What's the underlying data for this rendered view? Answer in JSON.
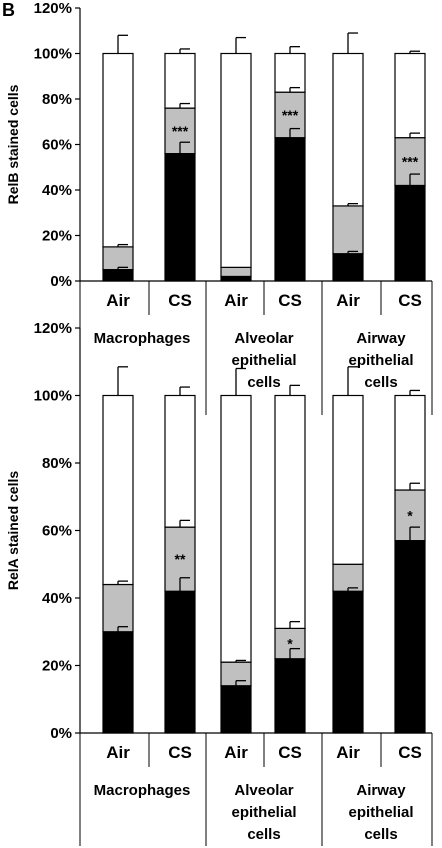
{
  "panel_label": "B",
  "colors": {
    "bottom": "#000000",
    "middle": "#c0c0c0",
    "top": "#ffffff",
    "axis": "#000000"
  },
  "chart_data": [
    {
      "type": "bar",
      "stacked": true,
      "ylabel": "RelB stained cells",
      "ylim": [
        0,
        1.2
      ],
      "yticks": [
        "0%",
        "20%",
        "40%",
        "60%",
        "80%",
        "100%",
        "120%"
      ],
      "categories": [
        "Air",
        "CS",
        "Air",
        "CS",
        "Air",
        "CS"
      ],
      "groups": [
        {
          "lines": [
            "Macrophages"
          ]
        },
        {
          "lines": [
            "Alveolar",
            "epithelial",
            "cells"
          ]
        },
        {
          "lines": [
            "Airway",
            "epithelial",
            "cells"
          ]
        }
      ],
      "series": [
        {
          "values": [
            0.05,
            0.56,
            0.02,
            0.63,
            0.12,
            0.42
          ],
          "err": [
            0.01,
            0.05,
            0.0,
            0.04,
            0.01,
            0.05
          ]
        },
        {
          "values": [
            0.1,
            0.2,
            0.04,
            0.2,
            0.21,
            0.21
          ],
          "err": [
            0.01,
            0.02,
            0.0,
            0.02,
            0.01,
            0.02
          ]
        },
        {
          "values": [
            0.85,
            0.24,
            0.94,
            0.17,
            0.67,
            0.37
          ],
          "err": [
            0.08,
            0.02,
            0.07,
            0.03,
            0.09,
            0.01
          ]
        }
      ],
      "annotations": [
        "",
        "***",
        "",
        "***",
        "",
        "***"
      ]
    },
    {
      "type": "bar",
      "stacked": true,
      "ylabel": "RelA stained cells",
      "ylim": [
        0,
        1.2
      ],
      "yticks": [
        "0%",
        "20%",
        "40%",
        "60%",
        "80%",
        "100%",
        "120%"
      ],
      "categories": [
        "Air",
        "CS",
        "Air",
        "CS",
        "Air",
        "CS"
      ],
      "groups": [
        {
          "lines": [
            "Macrophages"
          ]
        },
        {
          "lines": [
            "Alveolar",
            "epithelial",
            "cells"
          ]
        },
        {
          "lines": [
            "Airway",
            "epithelial",
            "cells"
          ]
        }
      ],
      "series": [
        {
          "values": [
            0.3,
            0.42,
            0.14,
            0.22,
            0.42,
            0.57
          ],
          "err": [
            0.015,
            0.04,
            0.015,
            0.03,
            0.01,
            0.04
          ]
        },
        {
          "values": [
            0.14,
            0.19,
            0.07,
            0.09,
            0.08,
            0.15
          ],
          "err": [
            0.01,
            0.02,
            0.005,
            0.02,
            0.0,
            0.02
          ]
        },
        {
          "values": [
            0.56,
            0.39,
            0.79,
            0.69,
            0.5,
            0.28
          ],
          "err": [
            0.085,
            0.025,
            0.08,
            0.03,
            0.085,
            0.015
          ]
        }
      ],
      "annotations": [
        "",
        "**",
        "",
        "*",
        "",
        "*"
      ]
    }
  ]
}
